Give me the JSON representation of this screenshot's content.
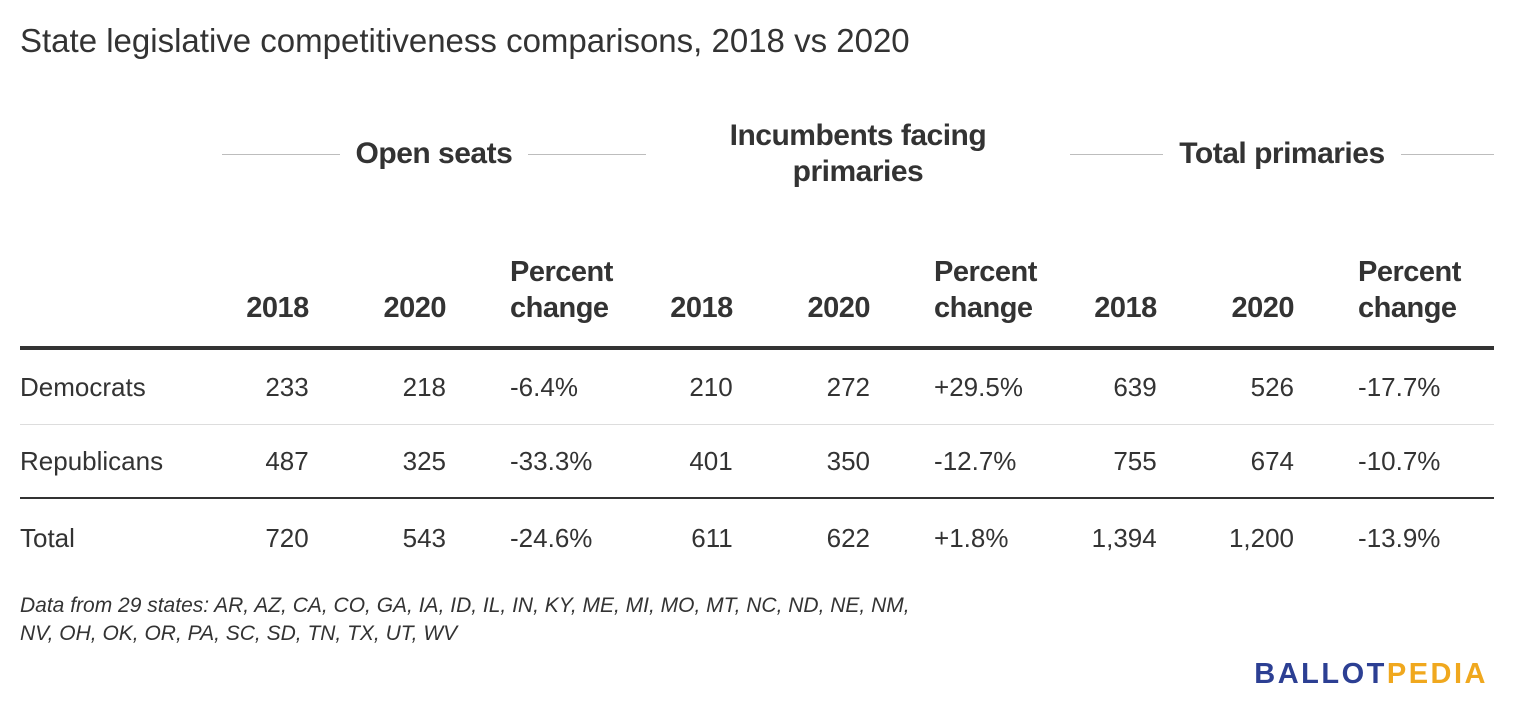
{
  "title": "State legislative competitiveness comparisons, 2018 vs 2020",
  "chart_data": {
    "type": "table",
    "column_groups": [
      {
        "label": "Open seats",
        "columns": [
          "2018",
          "2020",
          "Percent change"
        ]
      },
      {
        "label": "Incumbents facing primaries",
        "columns": [
          "2018",
          "2020",
          "Percent change"
        ]
      },
      {
        "label": "Total primaries",
        "columns": [
          "2018",
          "2020",
          "Percent change"
        ]
      }
    ],
    "rows": [
      {
        "label": "Democrats",
        "values": [
          "233",
          "218",
          "-6.4%",
          "210",
          "272",
          "+29.5%",
          "639",
          "526",
          "-17.7%"
        ]
      },
      {
        "label": "Republicans",
        "values": [
          "487",
          "325",
          "-33.3%",
          "401",
          "350",
          "-12.7%",
          "755",
          "674",
          "-10.7%"
        ]
      },
      {
        "label": "Total",
        "values": [
          "720",
          "543",
          "-24.6%",
          "611",
          "622",
          "+1.8%",
          "1,394",
          "1,200",
          "-13.9%"
        ]
      }
    ]
  },
  "note": "Data from 29 states: AR, AZ, CA, CO, GA, IA, ID, IL, IN, KY, ME, MI, MO, MT, NC, ND, NE, NM, NV, OH, OK, OR, PA, SC, SD, TN, TX, UT, WV",
  "logo": {
    "part1": "BALLOT",
    "part2": "PEDIA"
  }
}
